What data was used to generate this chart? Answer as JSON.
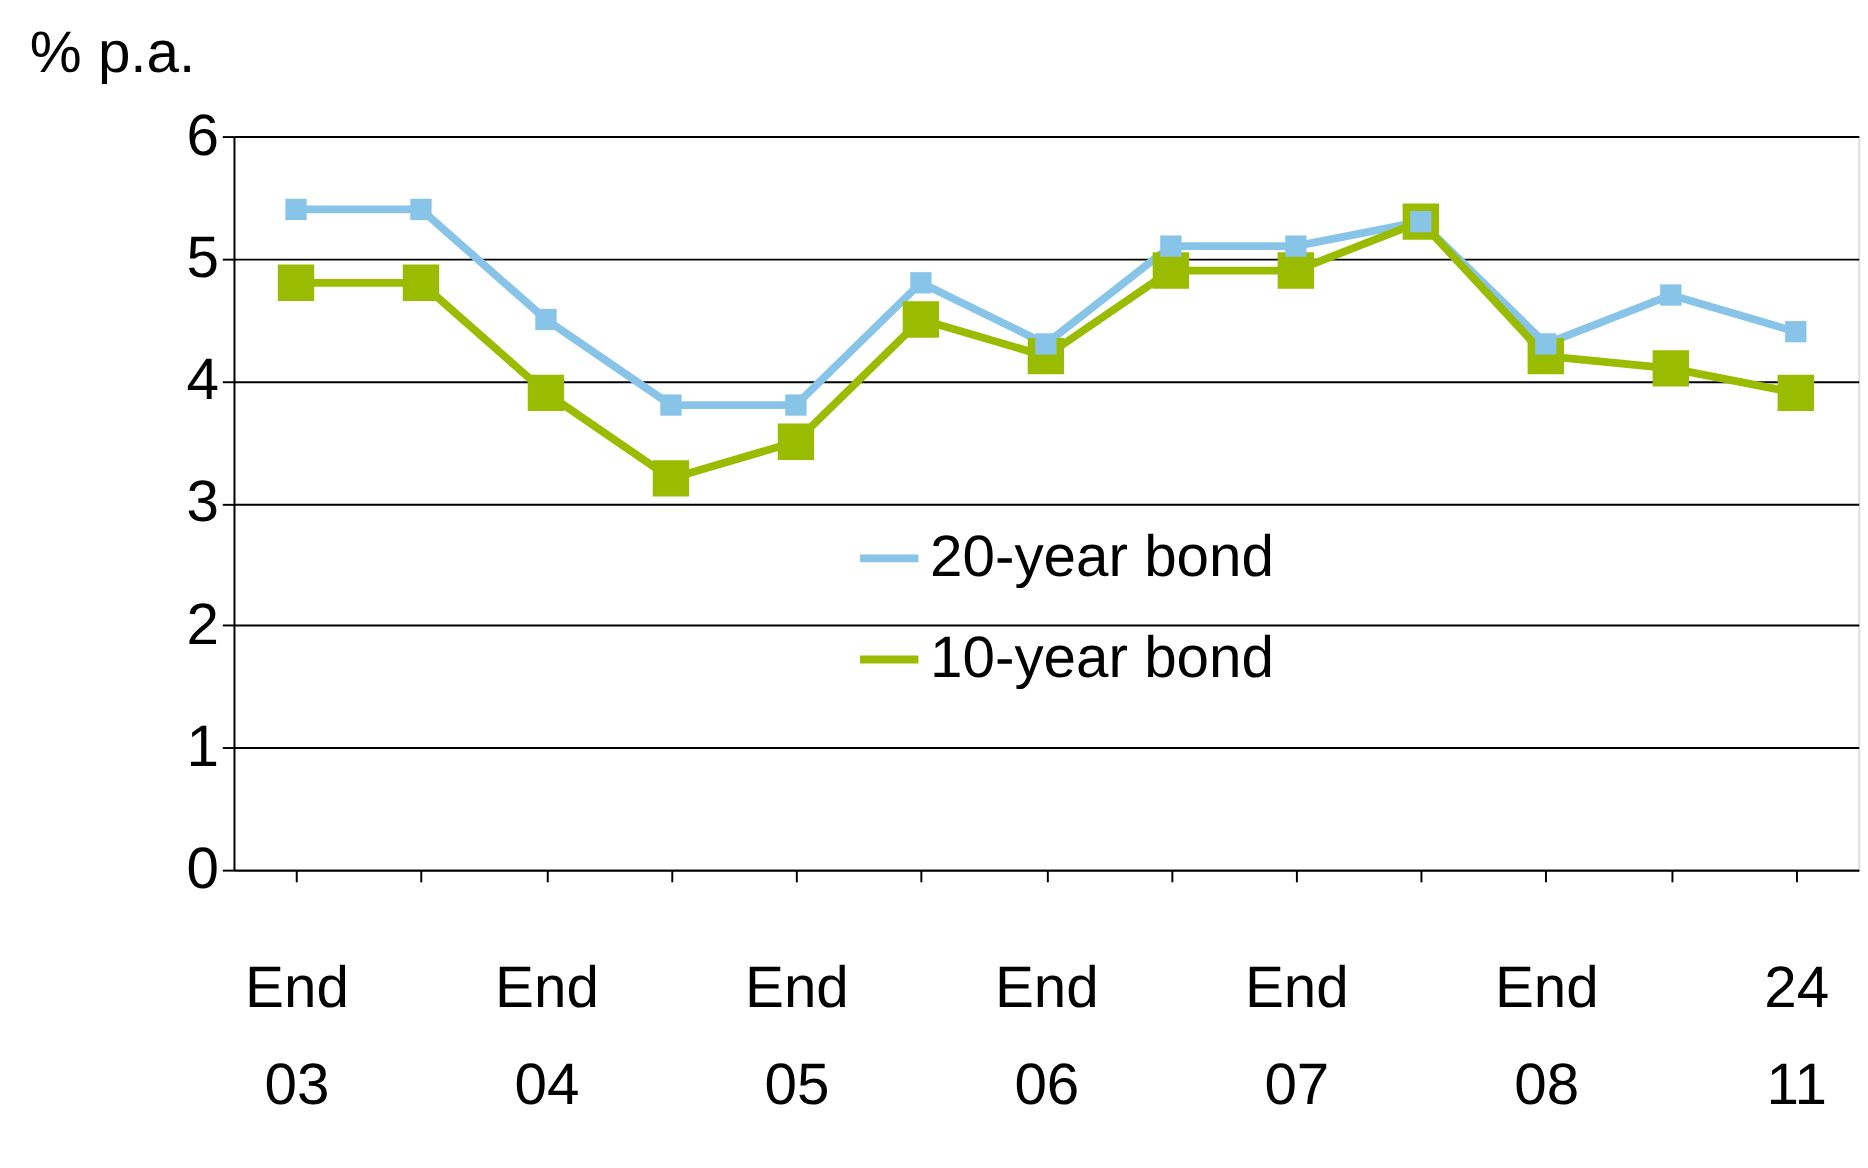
{
  "chart_data": {
    "type": "line",
    "ylabel": "% p.a.",
    "categories": [
      "End 03",
      null,
      "End 04",
      null,
      "End 05",
      null,
      "End 06",
      null,
      "End 07",
      null,
      "End 08",
      null,
      "24 11"
    ],
    "series": [
      {
        "name": "20-year bond",
        "color": "#88c4e8",
        "marker": "square",
        "values": [
          5.4,
          5.4,
          4.5,
          3.8,
          3.8,
          4.8,
          4.3,
          5.1,
          5.1,
          5.3,
          4.3,
          4.7,
          4.4
        ]
      },
      {
        "name": "10-year bond",
        "color": "#99bb00",
        "marker": "square",
        "values": [
          4.8,
          4.8,
          3.9,
          3.2,
          3.5,
          4.5,
          4.2,
          4.9,
          4.9,
          5.3,
          4.2,
          4.1,
          3.9
        ]
      }
    ],
    "ylim": [
      0,
      6
    ],
    "yticks": [
      0,
      1,
      2,
      3,
      4,
      5,
      6
    ],
    "grid": "y",
    "legend": "center",
    "marker": "square",
    "line_style": "solid"
  }
}
